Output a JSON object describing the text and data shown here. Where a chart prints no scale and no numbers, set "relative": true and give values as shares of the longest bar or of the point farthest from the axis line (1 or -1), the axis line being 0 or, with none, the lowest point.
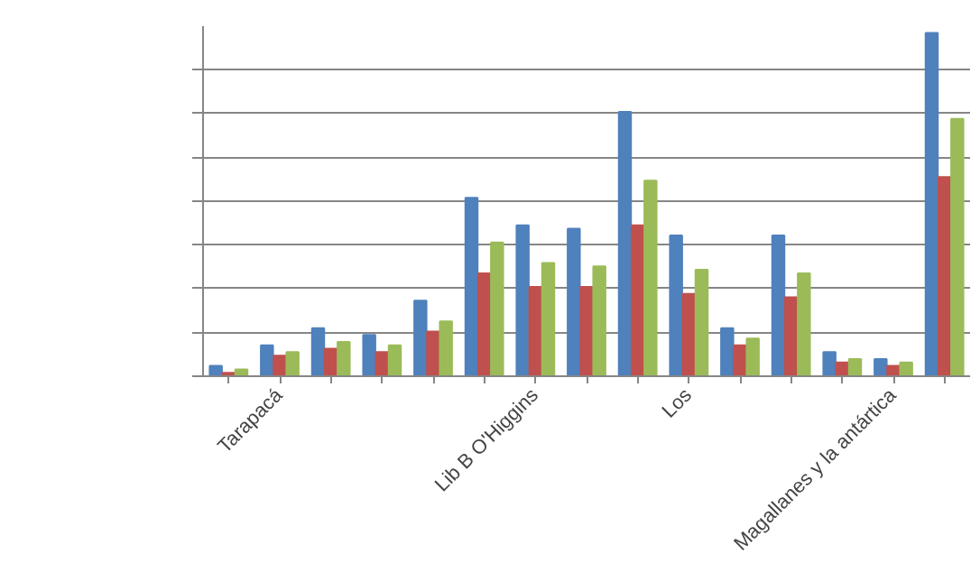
{
  "chart_data": {
    "type": "bar",
    "relative": true,
    "grid": "y",
    "categories": [
      null,
      "Tarapacá",
      null,
      null,
      null,
      null,
      "Lib B O'Higgins",
      null,
      null,
      "Los",
      null,
      null,
      null,
      "Magallanes y la antártica",
      null
    ],
    "series": [
      {
        "color": "#4f81bd",
        "values": [
          0.03,
          0.09,
          0.14,
          0.12,
          0.22,
          0.52,
          0.44,
          0.43,
          0.77,
          0.41,
          0.14,
          0.41,
          0.07,
          0.05,
          1
        ]
      },
      {
        "color": "#c0504d",
        "values": [
          0.01,
          0.06,
          0.08,
          0.07,
          0.13,
          0.3,
          0.26,
          0.26,
          0.44,
          0.24,
          0.09,
          0.23,
          0.04,
          0.03,
          0.58
        ]
      },
      {
        "color": "#9bbb59",
        "values": [
          0.02,
          0.07,
          0.1,
          0.09,
          0.16,
          0.39,
          0.33,
          0.32,
          0.57,
          0.31,
          0.11,
          0.3,
          0.05,
          0.04,
          0.75
        ]
      }
    ]
  }
}
